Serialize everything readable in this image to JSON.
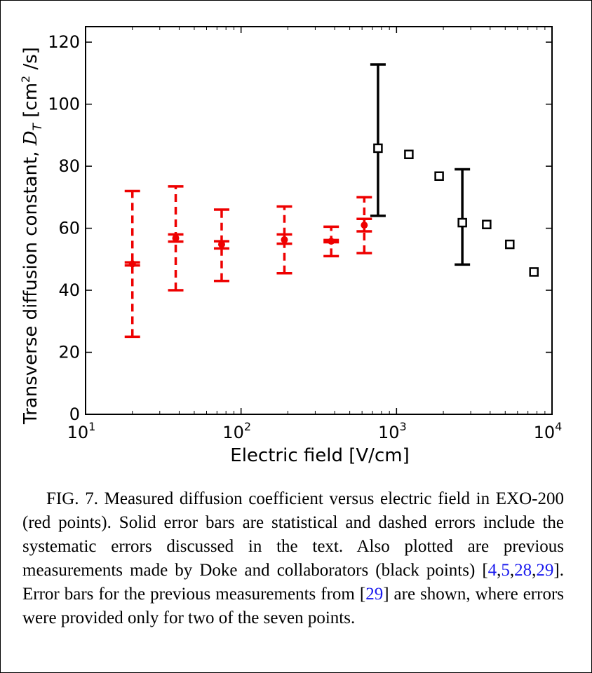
{
  "chart_data": {
    "type": "scatter",
    "xlabel": "Electric field [V/cm]",
    "ylabel": {
      "prefix": "Transverse diffusion constant, ",
      "symbol": "D",
      "subscript": "T",
      "unit_open": " [cm",
      "unit_sup": "2",
      "unit_close": " /s]"
    },
    "x_scale": "log",
    "xlim": [
      10,
      10000
    ],
    "ylim": [
      0,
      125
    ],
    "x_ticks": [
      {
        "value": 10,
        "base": "10",
        "exp": "1"
      },
      {
        "value": 100,
        "base": "10",
        "exp": "2"
      },
      {
        "value": 1000,
        "base": "10",
        "exp": "3"
      },
      {
        "value": 10000,
        "base": "10",
        "exp": "4"
      }
    ],
    "y_ticks": [
      {
        "value": 0,
        "label": "0"
      },
      {
        "value": 20,
        "label": "20"
      },
      {
        "value": 40,
        "label": "40"
      },
      {
        "value": 60,
        "label": "60"
      },
      {
        "value": 80,
        "label": "80"
      },
      {
        "value": 100,
        "label": "100"
      },
      {
        "value": 120,
        "label": "120"
      }
    ],
    "grid": false,
    "series": [
      {
        "color": "#ee0000",
        "marker": "dot",
        "points": [
          {
            "x": 20,
            "y": 48.5,
            "stat": [
              48,
              49
            ],
            "sys": [
              25,
              72
            ]
          },
          {
            "x": 38,
            "y": 56.8,
            "stat": [
              55.7,
              58
            ],
            "sys": [
              40,
              73.5
            ]
          },
          {
            "x": 75,
            "y": 54.8,
            "stat": [
              53.5,
              55.8
            ],
            "sys": [
              43,
              66
            ]
          },
          {
            "x": 190,
            "y": 56.3,
            "stat": [
              55,
              58
            ],
            "sys": [
              45.5,
              67
            ]
          },
          {
            "x": 380,
            "y": 55.8,
            "stat": [
              55.5,
              56.2
            ],
            "sys": [
              51,
              60.5
            ]
          },
          {
            "x": 620,
            "y": 61,
            "stat": [
              59,
              63
            ],
            "sys": [
              52,
              70
            ]
          }
        ]
      },
      {
        "color": "#000000",
        "marker": "square",
        "points": [
          {
            "x": 760,
            "y": 85.8,
            "err": [
              64,
              112.8
            ]
          },
          {
            "x": 1200,
            "y": 83.8
          },
          {
            "x": 1880,
            "y": 76.8
          },
          {
            "x": 2650,
            "y": 61.8,
            "err": [
              48.3,
              79
            ]
          },
          {
            "x": 3800,
            "y": 61.2
          },
          {
            "x": 5350,
            "y": 54.8
          },
          {
            "x": 7650,
            "y": 45.9
          }
        ]
      }
    ]
  },
  "caption": {
    "text_1": "FIG. 7. Measured diffusion coefficient versus electric field in EXO-200 (red points). Solid error bars are statistical and dashed errors include the systematic errors discussed in the text. Also plotted are previous measurements made by Doke and collaborators (black points) [",
    "ref_4": "4",
    "sep_1": ",",
    "ref_5": "5",
    "sep_2": ",",
    "ref_28": "28",
    "sep_3": ",",
    "ref_29a": "29",
    "text_2": "]. Error bars for the previous measurements from [",
    "ref_29b": "29",
    "text_3": "] are shown, where errors were provided only for two of the seven points."
  }
}
